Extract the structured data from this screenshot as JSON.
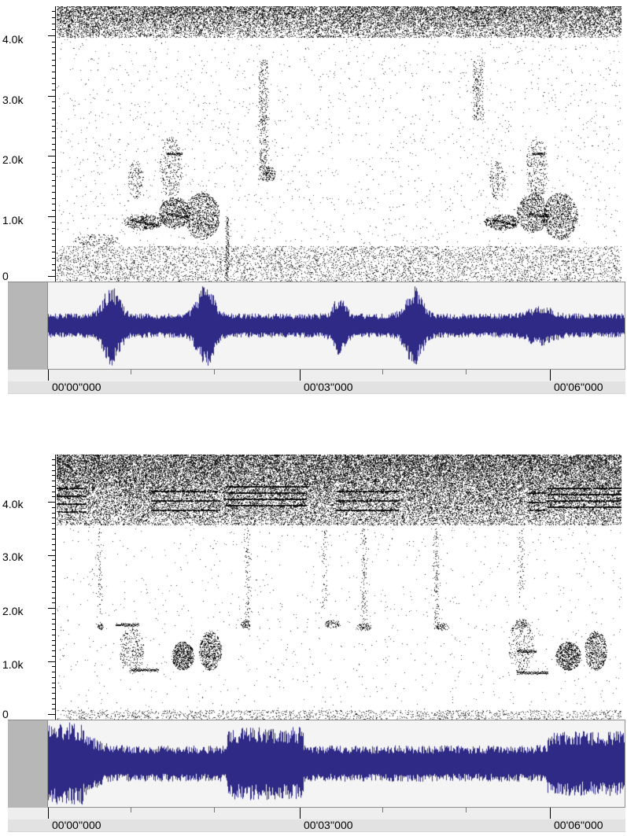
{
  "panels": [
    {
      "id": "top",
      "freq_axis": {
        "labels": [
          "4.0k",
          "3.0k",
          "2.0k",
          "1.0k",
          "0"
        ]
      },
      "time_ruler": {
        "labels": [
          "00'00''000",
          "00'03''000",
          "00'06''000"
        ]
      }
    },
    {
      "id": "bottom",
      "freq_axis": {
        "labels": [
          "4.0k",
          "3.0k",
          "2.0k",
          "1.0k",
          "0"
        ]
      },
      "time_ruler": {
        "labels": [
          "00'00''000",
          "00'03''000",
          "00'06''000"
        ]
      }
    }
  ],
  "colors": {
    "waveform": "#2e2a86",
    "spectrogram_ink": "#000000",
    "waveform_bg": "#f4f4f4",
    "ruler_bg": "#eeeeee",
    "thumb_bg": "#b7b7b7"
  }
}
